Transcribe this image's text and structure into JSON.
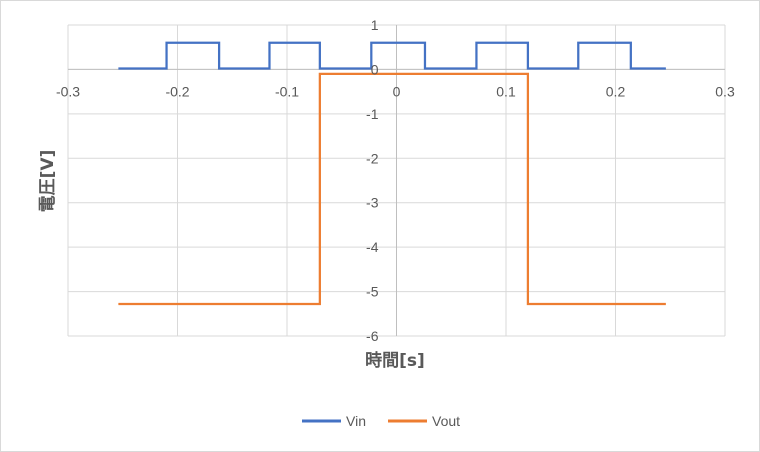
{
  "chart_data": {
    "type": "line",
    "title": "",
    "xlabel": "時間[s]",
    "ylabel": "電圧[V]",
    "xlim": [
      -0.3,
      0.3
    ],
    "ylim": [
      -6,
      1
    ],
    "x_ticks": [
      -0.3,
      -0.2,
      -0.1,
      0,
      0.1,
      0.2,
      0.3
    ],
    "x_tick_labels": [
      "-0.3",
      "-0.2",
      "-0.1",
      "0",
      "0.1",
      "0.2",
      "0.3"
    ],
    "y_ticks": [
      1,
      0,
      -1,
      -2,
      -3,
      -4,
      -5,
      -6
    ],
    "y_tick_labels": [
      "1",
      "0",
      "-1",
      "-2",
      "-3",
      "-4",
      "-5",
      "-6"
    ],
    "grid": true,
    "legend_position": "bottom",
    "series": [
      {
        "name": "Vin",
        "color": "#4472c4",
        "x": [
          -0.254,
          -0.21,
          -0.21,
          -0.162,
          -0.162,
          -0.116,
          -0.116,
          -0.07,
          -0.07,
          -0.023,
          -0.023,
          0.026,
          0.026,
          0.073,
          0.073,
          0.12,
          0.12,
          0.166,
          0.166,
          0.214,
          0.214,
          0.246
        ],
        "y": [
          0.02,
          0.02,
          0.6,
          0.6,
          0.02,
          0.02,
          0.6,
          0.6,
          0.02,
          0.02,
          0.6,
          0.6,
          0.02,
          0.02,
          0.6,
          0.6,
          0.02,
          0.02,
          0.6,
          0.6,
          0.02,
          0.02
        ]
      },
      {
        "name": "Vout",
        "color": "#ed7d31",
        "x": [
          -0.254,
          -0.07,
          -0.07,
          0.12,
          0.12,
          0.246
        ],
        "y": [
          -5.28,
          -5.28,
          -0.1,
          -0.1,
          -5.28,
          -5.28
        ]
      }
    ]
  }
}
